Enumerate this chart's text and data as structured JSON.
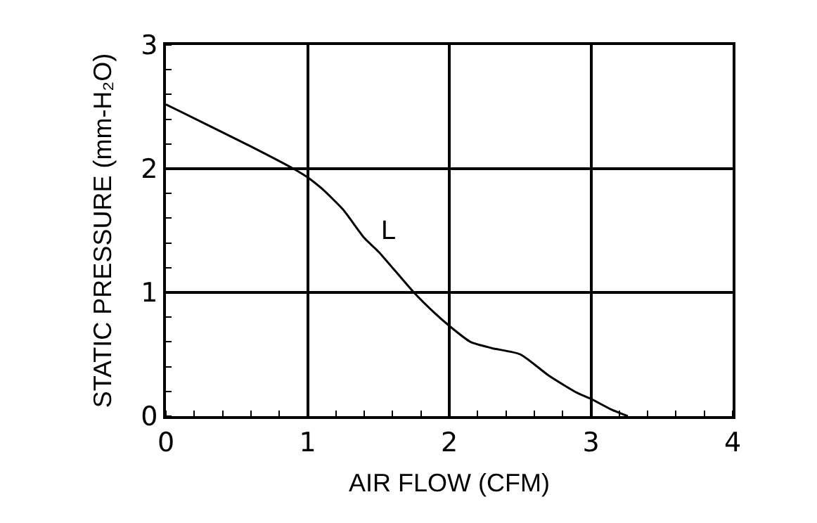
{
  "chart_data": {
    "type": "line",
    "xlabel": "AIR FLOW (CFM)",
    "ylabel": "STATIC PRESSURE (mm-H₂O)",
    "x": [
      0,
      0.3,
      0.6,
      0.9,
      1.0,
      1.1,
      1.25,
      1.4,
      1.5,
      1.75,
      1.9,
      2.0,
      2.15,
      2.3,
      2.5,
      2.7,
      2.9,
      3.0,
      3.15,
      3.26
    ],
    "series": [
      {
        "name": "L",
        "color": "#000000",
        "values": [
          2.52,
          2.35,
          2.18,
          2.0,
          1.93,
          1.84,
          1.67,
          1.44,
          1.33,
          1.0,
          0.83,
          0.73,
          0.6,
          0.55,
          0.5,
          0.33,
          0.19,
          0.14,
          0.05,
          0
        ]
      }
    ],
    "xlim": [
      0,
      4
    ],
    "xticks": [
      0,
      1,
      2,
      3,
      4
    ],
    "ylim": [
      0,
      3
    ],
    "yticks": [
      0,
      1,
      2,
      3
    ],
    "grid": true,
    "legend": false,
    "marker": "none",
    "line_style": "solid"
  }
}
